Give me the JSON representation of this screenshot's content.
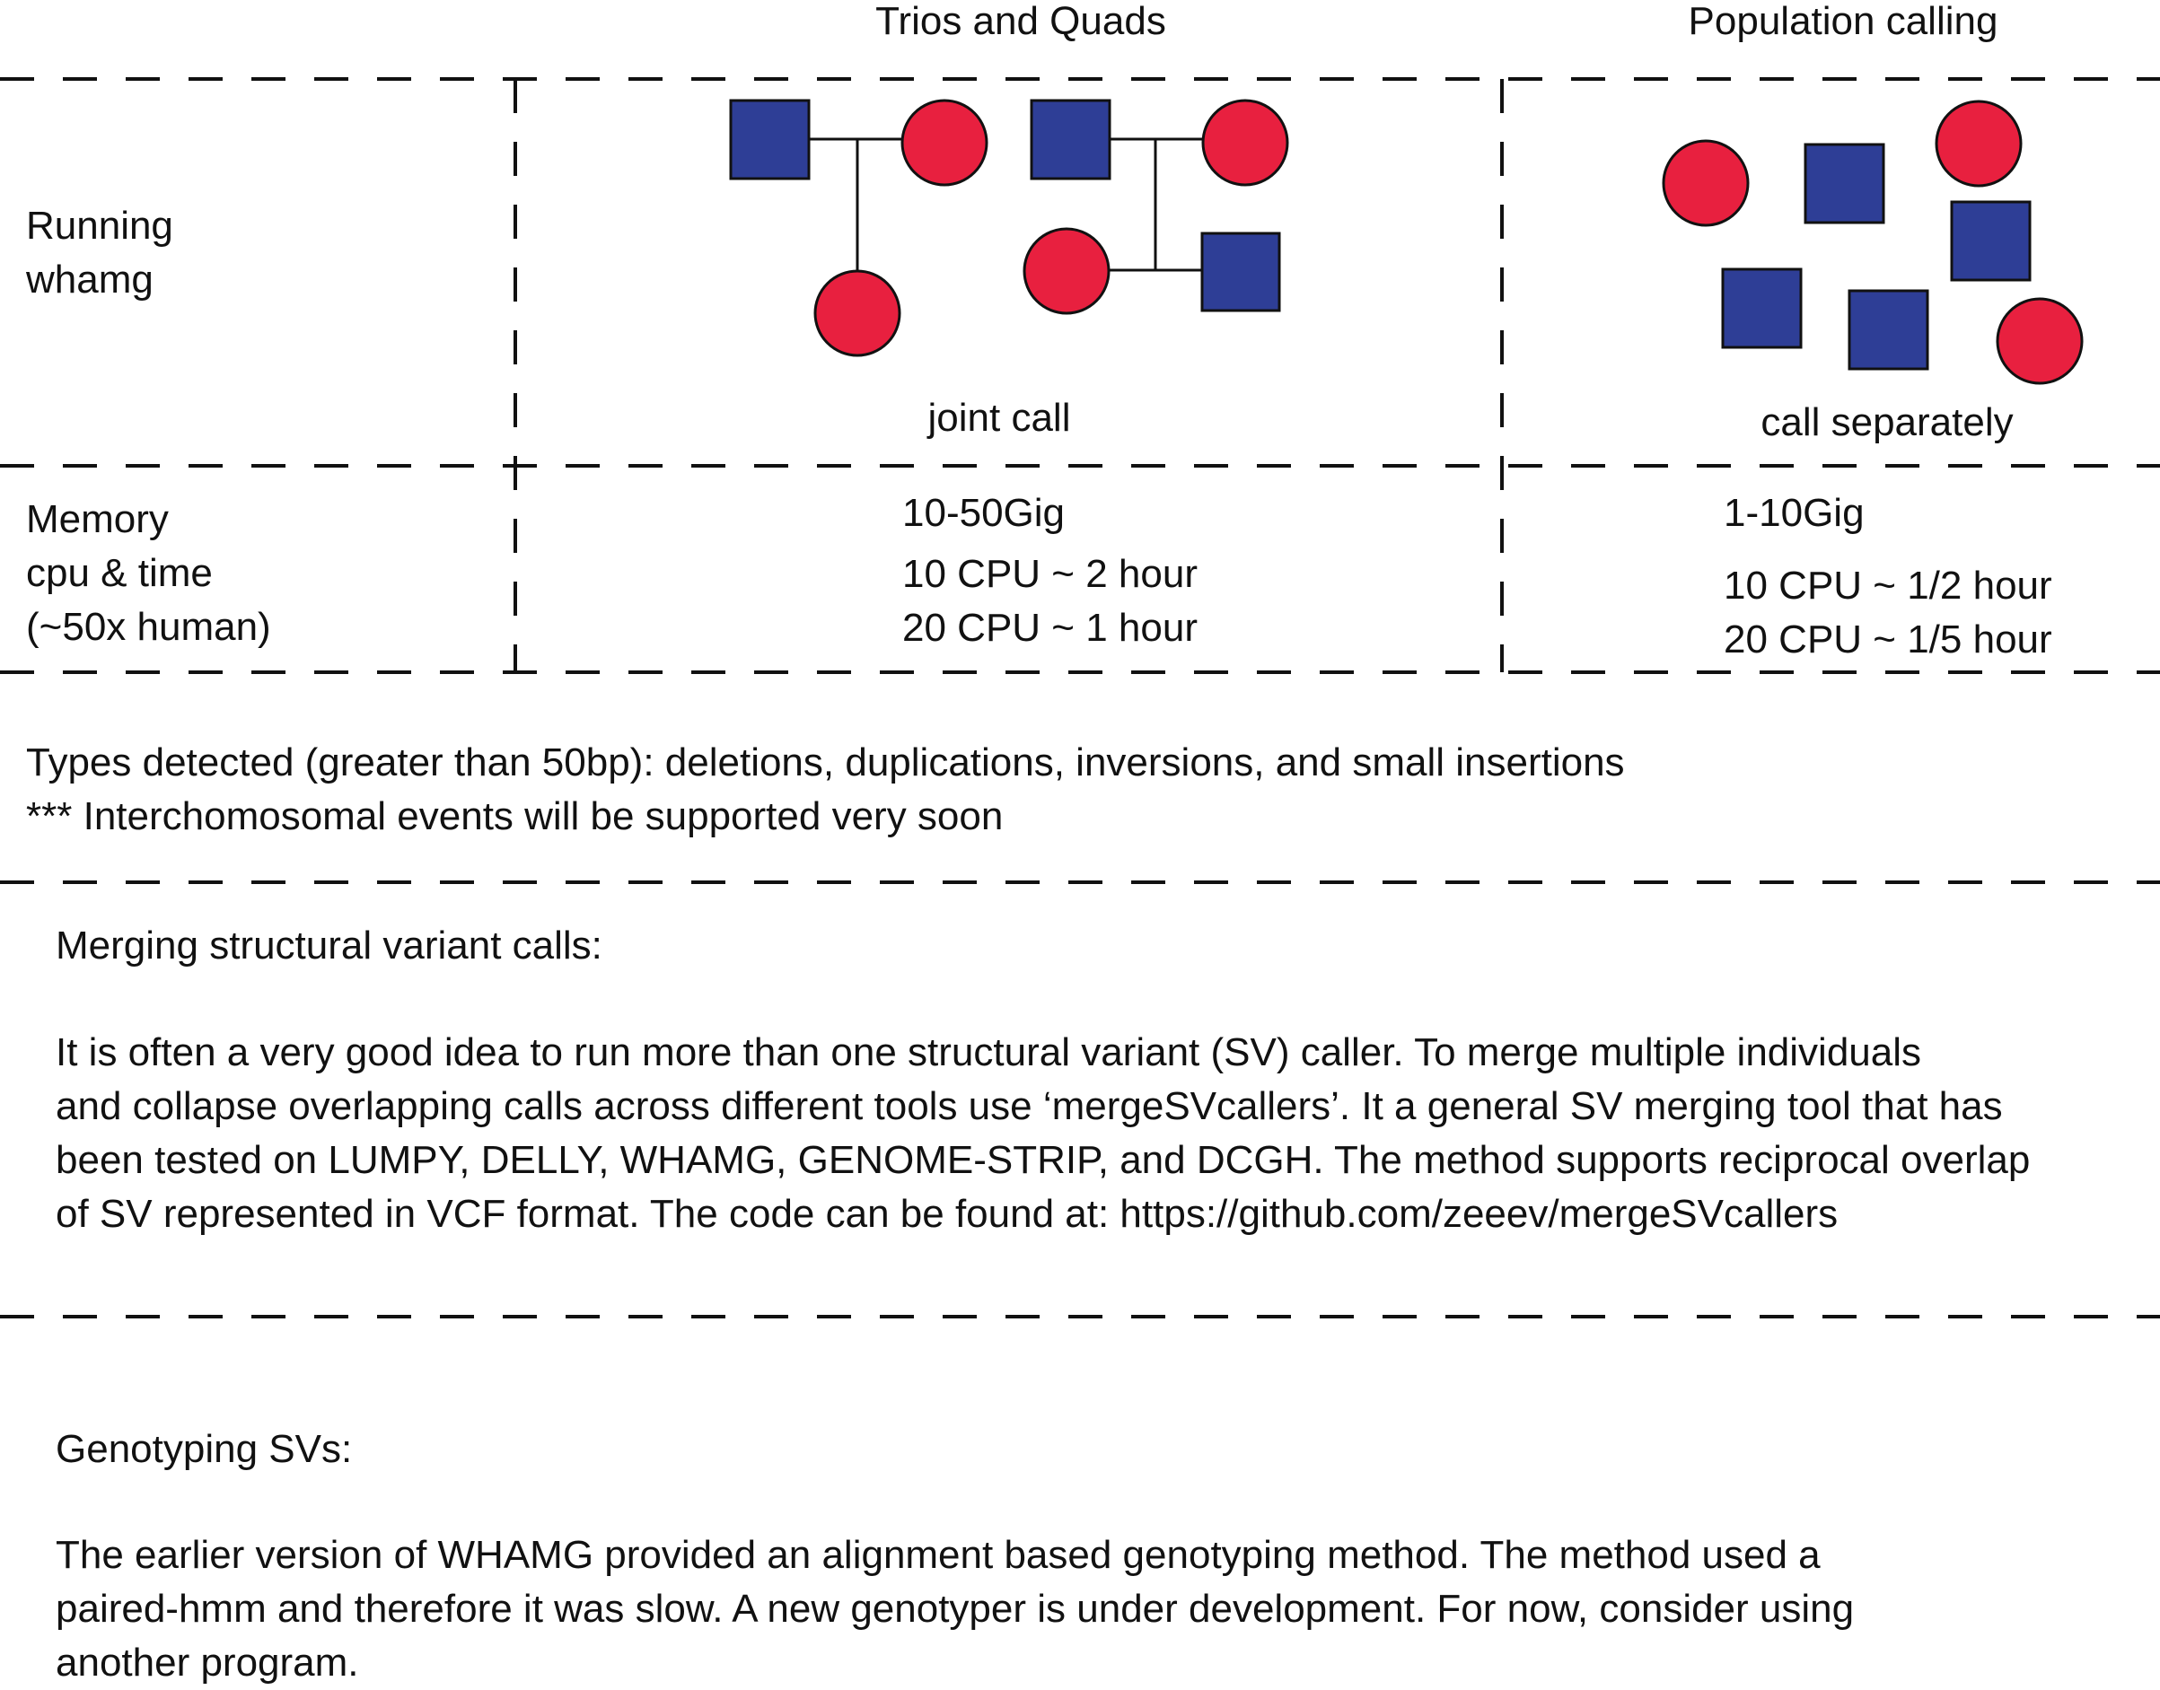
{
  "columns": {
    "trios": "Trios and Quads",
    "population": "Population calling"
  },
  "rows": {
    "running": [
      "Running",
      "whamg"
    ],
    "memory": [
      "Memory",
      "cpu & time",
      "(~50x human)"
    ]
  },
  "running": {
    "trios_caption": "joint call",
    "population_caption": "call separately"
  },
  "memory": {
    "trios": [
      "10-50Gig",
      "10 CPU ~ 2 hour",
      "20 CPU ~ 1 hour"
    ],
    "population": [
      "1-10Gig",
      "10 CPU ~ 1/2 hour",
      "20 CPU ~ 1/5 hour"
    ]
  },
  "types": [
    "Types detected (greater than 50bp): deletions, duplications,  inversions, and small insertions",
    "*** Interchomosomal events will be supported very soon"
  ],
  "merging": {
    "heading": "Merging structural variant calls:",
    "lines": [
      "It is often a very good idea to run more than one structural variant (SV) caller.  To merge multiple individuals",
      "and collapse overlapping calls across different tools use ‘mergeSVcallers’.  It a general SV merging tool that has",
      "been tested on LUMPY, DELLY, WHAMG, GENOME-STRIP, and DCGH.  The method supports reciprocal overlap",
      "of SV represented in VCF format.   The code can be found at:  https://github.com/zeeev/mergeSVcallers"
    ]
  },
  "genotyping": {
    "heading": "Genotyping SVs:",
    "lines": [
      "The earlier version of WHAMG provided an alignment based genotyping method.  The method used a",
      "paired-hmm and therefore it was slow.  A new genotyper is under development.  For now, consider using",
      "another program."
    ]
  },
  "colors": {
    "male": "#2e3e96",
    "female": "#e8203f",
    "line": "#111111"
  }
}
